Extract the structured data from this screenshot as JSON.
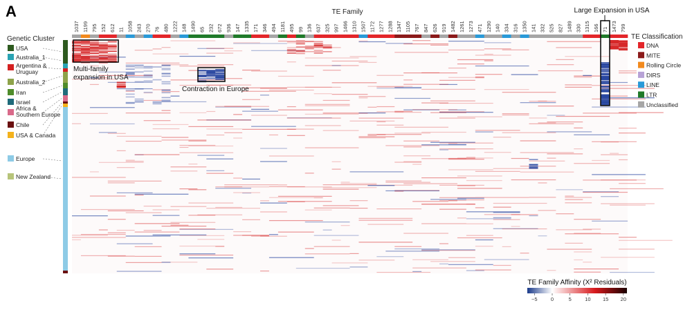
{
  "panel_label": "A",
  "colors": {
    "DNA": "#e3262a",
    "MITE": "#8b1a1a",
    "Rolling Circle": "#f28a1e",
    "DIRS": "#b7a2d6",
    "LINE": "#2a9ad8",
    "LTR": "#1f7a2a",
    "Unclassified": "#a6a6a6",
    "USA": "#2d5a1f",
    "Australia_1": "#2aa3b3",
    "Argentina & Uruguay": "#d42020",
    "Australia_2": "#8ea34a",
    "Iran": "#4f8c2a",
    "Israel": "#1e6a7a",
    "Africa & Southern Europe": "#d96a8a",
    "Chile": "#6a1010",
    "USA & Canada": "#f4b21c",
    "Europe": "#8ecbe6",
    "New Zealand": "#b7c47a"
  },
  "chart_data": {
    "type": "heatmap",
    "title": "TE Family",
    "column_labels": [
      "1037",
      "1199",
      "795",
      "152",
      "612",
      "11",
      "1058",
      "243",
      "270",
      "76",
      "480",
      "1222",
      "148",
      "1490",
      "65",
      "232",
      "672",
      "936",
      "147",
      "1335",
      "171",
      "346",
      "494",
      "1181",
      "495",
      "99",
      "136",
      "637",
      "325",
      "997",
      "1466",
      "1310",
      "1507",
      "1172",
      "1277",
      "1288",
      "1347",
      "1105",
      "767",
      "847",
      "626",
      "919",
      "1482",
      "1261",
      "1273",
      "471",
      "1290",
      "140",
      "334",
      "316",
      "1350",
      "141",
      "332",
      "525",
      "827",
      "1489",
      "330",
      "1315",
      "166",
      "71",
      "1473",
      "799"
    ],
    "column_classes": [
      "Unclassified",
      "Rolling Circle",
      "Unclassified",
      "DNA",
      "DNA",
      "Unclassified",
      "LINE",
      "Unclassified",
      "LINE",
      "DNA",
      "DNA",
      "Unclassified",
      "LINE",
      "LTR",
      "LTR",
      "LTR",
      "LTR",
      "Unclassified",
      "LTR",
      "LTR",
      "DNA",
      "DNA",
      "Unclassified",
      "LTR",
      "DNA",
      "LTR",
      "Unclassified",
      "DNA",
      "DNA",
      "DNA",
      "DNA",
      "DNA",
      "LINE",
      "DNA",
      "DNA",
      "DNA",
      "MITE",
      "MITE",
      "MITE",
      "Unclassified",
      "MITE",
      "Unclassified",
      "MITE",
      "Unclassified",
      "Unclassified",
      "LINE",
      "Unclassified",
      "Unclassified",
      "LINE",
      "Unclassified",
      "LINE",
      "Unclassified",
      "Unclassified",
      "Unclassified",
      "Unclassified",
      "Unclassified",
      "Unclassified",
      "DNA",
      "DNA",
      "LTR",
      "DNA",
      "DNA"
    ],
    "row_legend_title": "Genetic Cluster",
    "row_clusters": [
      "USA",
      "Australia_1",
      "Argentina & Uruguay",
      "Australia_2",
      "Iran",
      "Israel",
      "Africa & Southern Europe",
      "Chile",
      "USA & Canada",
      "Europe",
      "New Zealand"
    ],
    "column_legend_title": "TE Classification",
    "column_classification": [
      "DNA",
      "MITE",
      "Rolling Circle",
      "DIRS",
      "LINE",
      "LTR",
      "Unclassified"
    ],
    "colorbar": {
      "title": "TE Family Affinity (X² Residuals)",
      "ticks": [
        -5,
        0,
        5,
        10,
        15,
        20
      ],
      "range": [
        -7,
        21
      ],
      "colors": [
        "#1a3a8a",
        "#ffffff",
        "#d7191c",
        "#1a0000"
      ]
    },
    "annotations": [
      {
        "text": "Multi-family expansion in USA"
      },
      {
        "text": "Contraction in Europe"
      },
      {
        "text": "Large Expansion in USA"
      }
    ]
  }
}
